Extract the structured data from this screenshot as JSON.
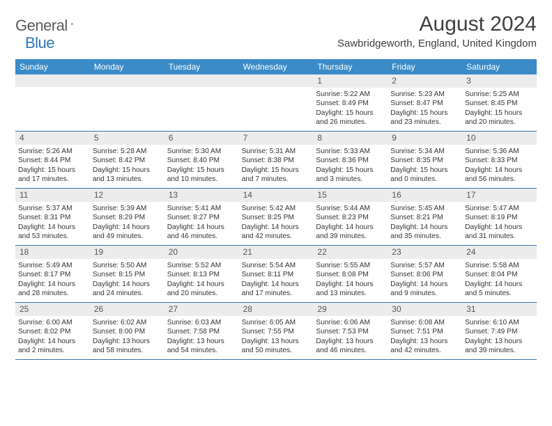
{
  "brand": {
    "name_gray": "General",
    "name_blue": "Blue"
  },
  "title": "August 2024",
  "location": "Sawbridgeworth, England, United Kingdom",
  "colors": {
    "header_bg": "#3b8bc7",
    "header_text": "#ffffff",
    "daynum_bg": "#ececec",
    "week_border": "#3b73a5",
    "text": "#333333",
    "title_text": "#404040"
  },
  "day_labels": [
    "Sunday",
    "Monday",
    "Tuesday",
    "Wednesday",
    "Thursday",
    "Friday",
    "Saturday"
  ],
  "weeks": [
    [
      null,
      null,
      null,
      null,
      {
        "n": "1",
        "sr": "Sunrise: 5:22 AM",
        "ss": "Sunset: 8:49 PM",
        "dl": "Daylight: 15 hours and 26 minutes."
      },
      {
        "n": "2",
        "sr": "Sunrise: 5:23 AM",
        "ss": "Sunset: 8:47 PM",
        "dl": "Daylight: 15 hours and 23 minutes."
      },
      {
        "n": "3",
        "sr": "Sunrise: 5:25 AM",
        "ss": "Sunset: 8:45 PM",
        "dl": "Daylight: 15 hours and 20 minutes."
      }
    ],
    [
      {
        "n": "4",
        "sr": "Sunrise: 5:26 AM",
        "ss": "Sunset: 8:44 PM",
        "dl": "Daylight: 15 hours and 17 minutes."
      },
      {
        "n": "5",
        "sr": "Sunrise: 5:28 AM",
        "ss": "Sunset: 8:42 PM",
        "dl": "Daylight: 15 hours and 13 minutes."
      },
      {
        "n": "6",
        "sr": "Sunrise: 5:30 AM",
        "ss": "Sunset: 8:40 PM",
        "dl": "Daylight: 15 hours and 10 minutes."
      },
      {
        "n": "7",
        "sr": "Sunrise: 5:31 AM",
        "ss": "Sunset: 8:38 PM",
        "dl": "Daylight: 15 hours and 7 minutes."
      },
      {
        "n": "8",
        "sr": "Sunrise: 5:33 AM",
        "ss": "Sunset: 8:36 PM",
        "dl": "Daylight: 15 hours and 3 minutes."
      },
      {
        "n": "9",
        "sr": "Sunrise: 5:34 AM",
        "ss": "Sunset: 8:35 PM",
        "dl": "Daylight: 15 hours and 0 minutes."
      },
      {
        "n": "10",
        "sr": "Sunrise: 5:36 AM",
        "ss": "Sunset: 8:33 PM",
        "dl": "Daylight: 14 hours and 56 minutes."
      }
    ],
    [
      {
        "n": "11",
        "sr": "Sunrise: 5:37 AM",
        "ss": "Sunset: 8:31 PM",
        "dl": "Daylight: 14 hours and 53 minutes."
      },
      {
        "n": "12",
        "sr": "Sunrise: 5:39 AM",
        "ss": "Sunset: 8:29 PM",
        "dl": "Daylight: 14 hours and 49 minutes."
      },
      {
        "n": "13",
        "sr": "Sunrise: 5:41 AM",
        "ss": "Sunset: 8:27 PM",
        "dl": "Daylight: 14 hours and 46 minutes."
      },
      {
        "n": "14",
        "sr": "Sunrise: 5:42 AM",
        "ss": "Sunset: 8:25 PM",
        "dl": "Daylight: 14 hours and 42 minutes."
      },
      {
        "n": "15",
        "sr": "Sunrise: 5:44 AM",
        "ss": "Sunset: 8:23 PM",
        "dl": "Daylight: 14 hours and 39 minutes."
      },
      {
        "n": "16",
        "sr": "Sunrise: 5:45 AM",
        "ss": "Sunset: 8:21 PM",
        "dl": "Daylight: 14 hours and 35 minutes."
      },
      {
        "n": "17",
        "sr": "Sunrise: 5:47 AM",
        "ss": "Sunset: 8:19 PM",
        "dl": "Daylight: 14 hours and 31 minutes."
      }
    ],
    [
      {
        "n": "18",
        "sr": "Sunrise: 5:49 AM",
        "ss": "Sunset: 8:17 PM",
        "dl": "Daylight: 14 hours and 28 minutes."
      },
      {
        "n": "19",
        "sr": "Sunrise: 5:50 AM",
        "ss": "Sunset: 8:15 PM",
        "dl": "Daylight: 14 hours and 24 minutes."
      },
      {
        "n": "20",
        "sr": "Sunrise: 5:52 AM",
        "ss": "Sunset: 8:13 PM",
        "dl": "Daylight: 14 hours and 20 minutes."
      },
      {
        "n": "21",
        "sr": "Sunrise: 5:54 AM",
        "ss": "Sunset: 8:11 PM",
        "dl": "Daylight: 14 hours and 17 minutes."
      },
      {
        "n": "22",
        "sr": "Sunrise: 5:55 AM",
        "ss": "Sunset: 8:08 PM",
        "dl": "Daylight: 14 hours and 13 minutes."
      },
      {
        "n": "23",
        "sr": "Sunrise: 5:57 AM",
        "ss": "Sunset: 8:06 PM",
        "dl": "Daylight: 14 hours and 9 minutes."
      },
      {
        "n": "24",
        "sr": "Sunrise: 5:58 AM",
        "ss": "Sunset: 8:04 PM",
        "dl": "Daylight: 14 hours and 5 minutes."
      }
    ],
    [
      {
        "n": "25",
        "sr": "Sunrise: 6:00 AM",
        "ss": "Sunset: 8:02 PM",
        "dl": "Daylight: 14 hours and 2 minutes."
      },
      {
        "n": "26",
        "sr": "Sunrise: 6:02 AM",
        "ss": "Sunset: 8:00 PM",
        "dl": "Daylight: 13 hours and 58 minutes."
      },
      {
        "n": "27",
        "sr": "Sunrise: 6:03 AM",
        "ss": "Sunset: 7:58 PM",
        "dl": "Daylight: 13 hours and 54 minutes."
      },
      {
        "n": "28",
        "sr": "Sunrise: 6:05 AM",
        "ss": "Sunset: 7:55 PM",
        "dl": "Daylight: 13 hours and 50 minutes."
      },
      {
        "n": "29",
        "sr": "Sunrise: 6:06 AM",
        "ss": "Sunset: 7:53 PM",
        "dl": "Daylight: 13 hours and 46 minutes."
      },
      {
        "n": "30",
        "sr": "Sunrise: 6:08 AM",
        "ss": "Sunset: 7:51 PM",
        "dl": "Daylight: 13 hours and 42 minutes."
      },
      {
        "n": "31",
        "sr": "Sunrise: 6:10 AM",
        "ss": "Sunset: 7:49 PM",
        "dl": "Daylight: 13 hours and 39 minutes."
      }
    ]
  ]
}
